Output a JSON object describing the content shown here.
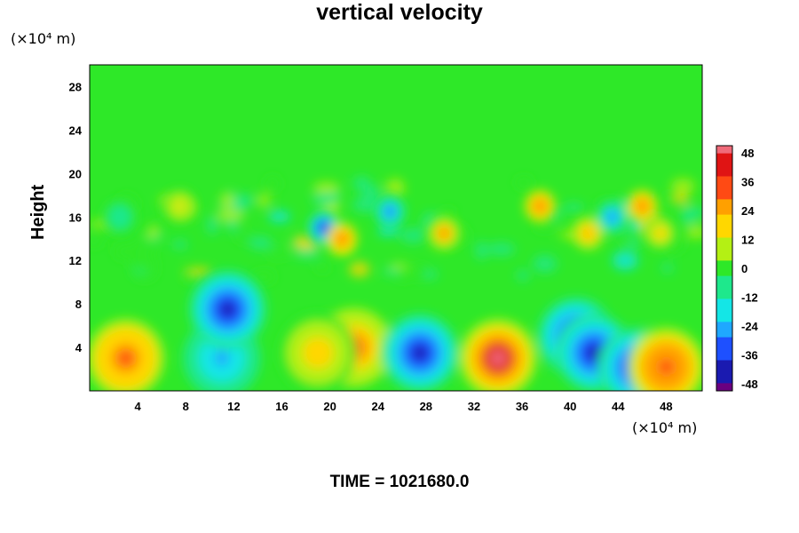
{
  "chart_data": {
    "type": "heatmap",
    "title": "vertical velocity",
    "ylabel": "Height",
    "xunit": "(×10⁴ m)",
    "yunit": "(×10⁴ m)",
    "xlim": [
      0,
      51
    ],
    "ylim": [
      0,
      30
    ],
    "xticks": [
      "4",
      "8",
      "12",
      "16",
      "20",
      "24",
      "28",
      "32",
      "36",
      "40",
      "44",
      "48"
    ],
    "yticks": [
      "4",
      "8",
      "12",
      "16",
      "20",
      "24",
      "28"
    ],
    "colorbar": {
      "ticks": [
        "48",
        "36",
        "24",
        "12",
        "0",
        "-12",
        "-24",
        "-36",
        "-48"
      ],
      "range": [
        -48,
        48
      ],
      "colors_low_to_high": [
        "#6a0080",
        "#1a1ab0",
        "#1e50ff",
        "#1fa8ff",
        "#14e6e6",
        "#1ee88c",
        "#2ee828",
        "#b4f014",
        "#ffd700",
        "#ffa000",
        "#ff4a14",
        "#e01414",
        "#f06b7a"
      ]
    },
    "features": [
      {
        "x": 3,
        "y": 3,
        "value": 30
      },
      {
        "x": 11,
        "y": 3,
        "value": -22
      },
      {
        "x": 11.5,
        "y": 7.5,
        "value": -38
      },
      {
        "x": 22,
        "y": 4,
        "value": 28
      },
      {
        "x": 19,
        "y": 3.5,
        "value": 18
      },
      {
        "x": 27.5,
        "y": 3.5,
        "value": -40
      },
      {
        "x": 34,
        "y": 3,
        "value": 46
      },
      {
        "x": 40.5,
        "y": 5,
        "value": -38
      },
      {
        "x": 42,
        "y": 3.5,
        "value": -44
      },
      {
        "x": 45.5,
        "y": 2.2,
        "value": -36
      },
      {
        "x": 48,
        "y": 2.2,
        "value": 34
      },
      {
        "x": 19.5,
        "y": 15,
        "value": -40
      },
      {
        "x": 21,
        "y": 14,
        "value": 30
      },
      {
        "x": 25,
        "y": 16.5,
        "value": -30
      },
      {
        "x": 29.5,
        "y": 14.5,
        "value": 26
      },
      {
        "x": 37.5,
        "y": 17,
        "value": 30
      },
      {
        "x": 41.5,
        "y": 14.5,
        "value": 22
      },
      {
        "x": 43.5,
        "y": 16,
        "value": -28
      },
      {
        "x": 46,
        "y": 17,
        "value": 30
      },
      {
        "x": 47.5,
        "y": 14.5,
        "value": 18
      },
      {
        "x": 7.5,
        "y": 17,
        "value": 14
      },
      {
        "x": 2.5,
        "y": 16,
        "value": -12
      }
    ]
  },
  "footer": {
    "time_label": "TIME = 1021680.0"
  }
}
